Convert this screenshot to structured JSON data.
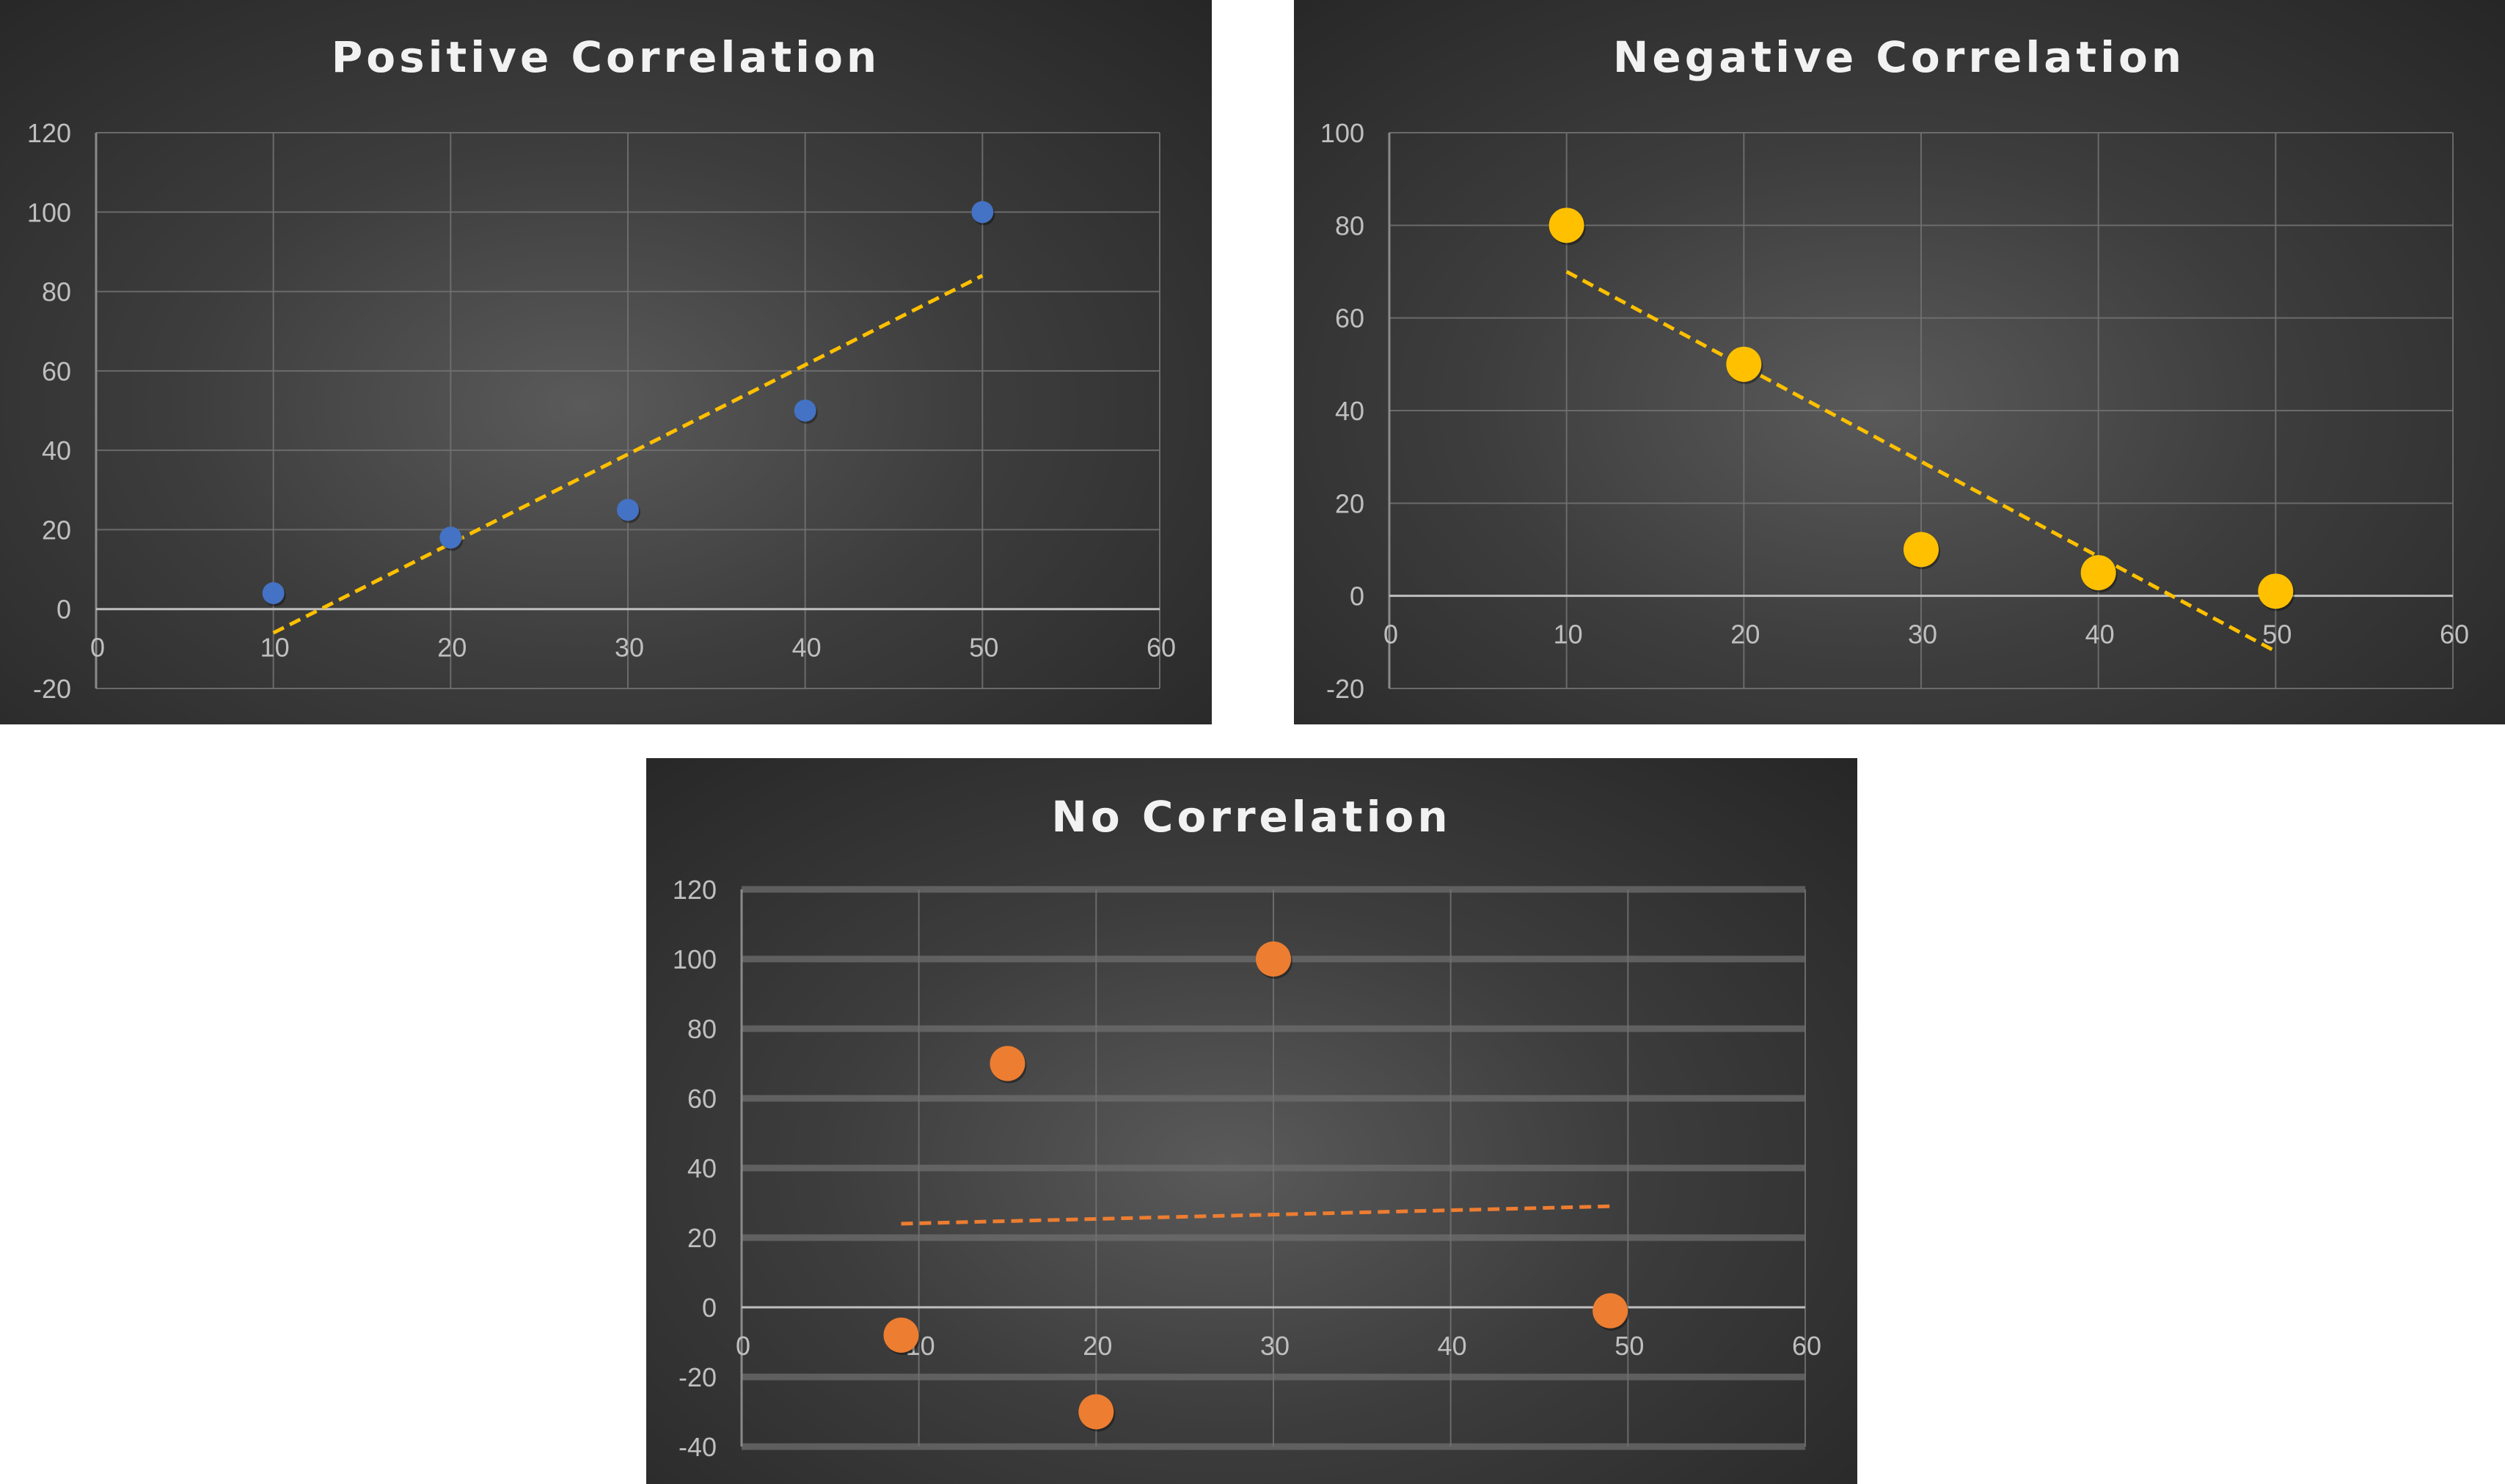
{
  "chart_data": [
    {
      "type": "scatter",
      "title": "Positive Correlation",
      "xlim": [
        0,
        60
      ],
      "ylim": [
        -20,
        120
      ],
      "xticks": [
        "0",
        "10",
        "20",
        "30",
        "40",
        "50",
        "60"
      ],
      "yticks": [
        "-20",
        "0",
        "20",
        "40",
        "60",
        "80",
        "100",
        "120"
      ],
      "grid": true,
      "series": [
        {
          "x": [
            10,
            20,
            30,
            40,
            50
          ],
          "y": [
            4,
            18,
            25,
            50,
            100
          ],
          "color": "#4472c4",
          "marker_size": "small"
        }
      ],
      "trendline": {
        "type": "linear",
        "x": [
          10,
          50
        ],
        "y": [
          -6,
          84
        ],
        "color": "#ffc000",
        "style": "dashed"
      }
    },
    {
      "type": "scatter",
      "title": "Negative Correlation",
      "xlim": [
        0,
        60
      ],
      "ylim": [
        -20,
        100
      ],
      "xticks": [
        "0",
        "10",
        "20",
        "30",
        "40",
        "50",
        "60"
      ],
      "yticks": [
        "-20",
        "0",
        "20",
        "40",
        "60",
        "80",
        "100"
      ],
      "grid": true,
      "series": [
        {
          "x": [
            10,
            20,
            30,
            40,
            50
          ],
          "y": [
            80,
            50,
            10,
            5,
            1
          ],
          "color": "#ffc000",
          "marker_size": "large"
        }
      ],
      "trendline": {
        "type": "linear",
        "x": [
          10,
          50
        ],
        "y": [
          70,
          -12
        ],
        "color": "#ffc000",
        "style": "dashed"
      }
    },
    {
      "type": "scatter",
      "title": "No Correlation",
      "xlim": [
        0,
        60
      ],
      "ylim": [
        -40,
        120
      ],
      "xticks": [
        "0",
        "10",
        "20",
        "30",
        "40",
        "50",
        "60"
      ],
      "yticks": [
        "-40",
        "-20",
        "0",
        "20",
        "40",
        "60",
        "80",
        "100",
        "120"
      ],
      "grid": true,
      "series": [
        {
          "x": [
            9,
            15,
            20,
            30,
            49
          ],
          "y": [
            -8,
            70,
            -30,
            100,
            -1
          ],
          "color": "#ed7d31",
          "marker_size": "large"
        }
      ],
      "trendline": {
        "type": "linear",
        "x": [
          9,
          49
        ],
        "y": [
          24,
          29
        ],
        "color": "#ed7d31",
        "style": "dashed"
      }
    }
  ]
}
